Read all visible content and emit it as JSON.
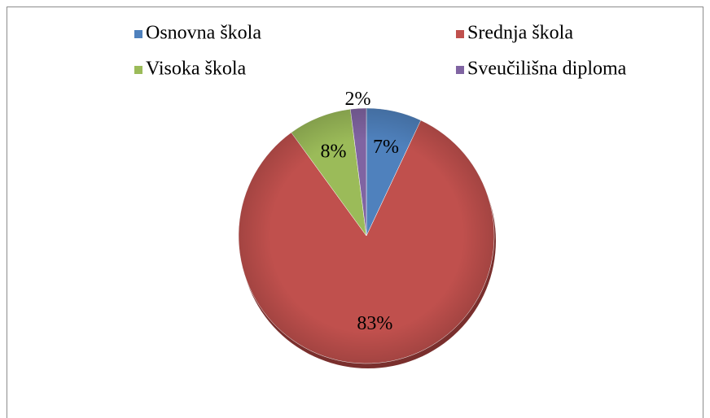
{
  "chart_data": {
    "type": "pie",
    "categories": [
      "Osnovna škola",
      "Srednja škola",
      "Visoka škola",
      "Sveučilišna diploma"
    ],
    "values": [
      7,
      83,
      8,
      2
    ],
    "value_labels": [
      "7%",
      "83%",
      "8%",
      "2%"
    ],
    "colors": [
      "#4f81bd",
      "#c0504d",
      "#9bbb59",
      "#8064a2"
    ],
    "legend": "top"
  }
}
